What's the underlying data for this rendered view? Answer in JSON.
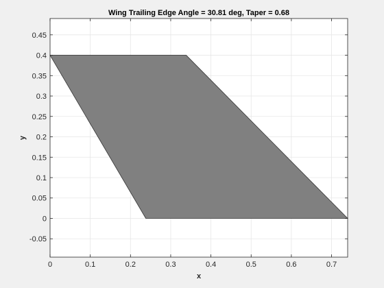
{
  "chart_data": {
    "type": "area",
    "title": "Wing Trailing Edge Angle =    30.81 deg, Taper =   0.68",
    "xlabel": "x",
    "ylabel": "y",
    "xlim": [
      0,
      0.74
    ],
    "ylim": [
      -0.095,
      0.49
    ],
    "xticks": [
      0,
      0.1,
      0.2,
      0.3,
      0.4,
      0.5,
      0.6,
      0.7
    ],
    "xtick_labels": [
      "0",
      "0.1",
      "0.2",
      "0.3",
      "0.4",
      "0.5",
      "0.6",
      "0.7"
    ],
    "yticks": [
      -0.05,
      0,
      0.05,
      0.1,
      0.15,
      0.2,
      0.25,
      0.3,
      0.35,
      0.4,
      0.45
    ],
    "ytick_labels": [
      "-0.05",
      "0",
      "0.05",
      "0.1",
      "0.15",
      "0.2",
      "0.25",
      "0.3",
      "0.35",
      "0.4",
      "0.45"
    ],
    "grid": true,
    "polygon": {
      "x": [
        0,
        0.3386,
        0.74,
        0.2381
      ],
      "y": [
        0.4,
        0.4,
        0,
        0
      ],
      "fill_color": "#808080",
      "edge_color": "#333333"
    },
    "colors": {
      "figure_background": "#f0f0f0",
      "axes_background": "#ffffff",
      "grid": "#e6e6e6",
      "axis": "#262626"
    }
  }
}
